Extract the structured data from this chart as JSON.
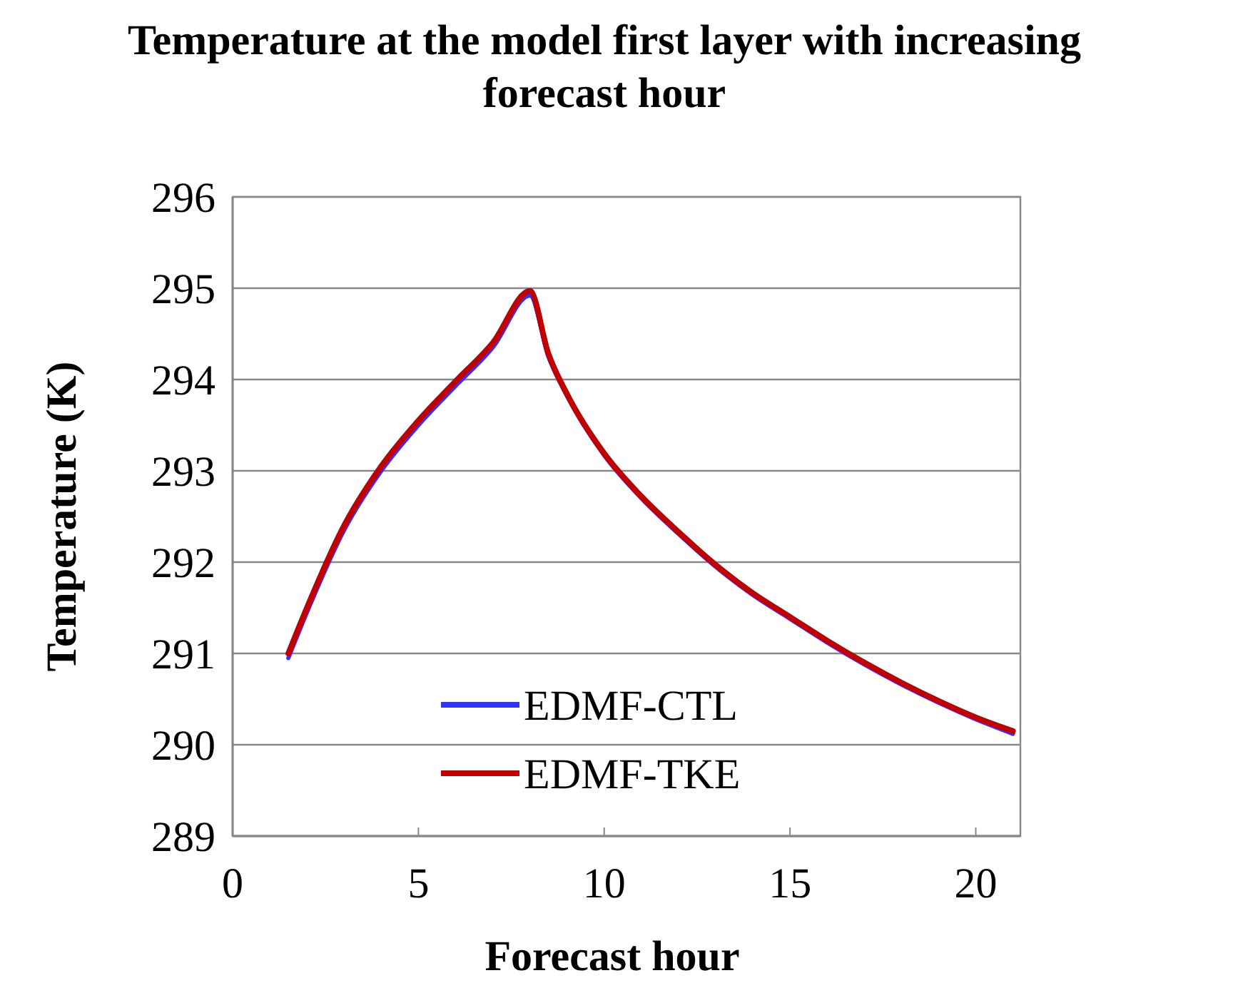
{
  "chart_data": {
    "type": "line",
    "title": "Temperature at the model first layer with increasing forecast hour",
    "xlabel": "Forecast hour",
    "ylabel": "Temperature (K)",
    "x": [
      1.5,
      2,
      3,
      4,
      5,
      6,
      7,
      8,
      8.5,
      9,
      10,
      11,
      12,
      13,
      14,
      15,
      16,
      17,
      18,
      19,
      20,
      21
    ],
    "series": [
      {
        "name": "EDMF-CTL",
        "color": "#3333ff",
        "values": [
          290.95,
          291.45,
          292.35,
          293.0,
          293.5,
          293.93,
          294.35,
          294.92,
          294.25,
          293.82,
          293.17,
          292.7,
          292.31,
          291.95,
          291.64,
          291.38,
          291.12,
          290.88,
          290.66,
          290.46,
          290.28,
          290.12
        ]
      },
      {
        "name": "EDMF-TKE",
        "color": "#c00000",
        "values": [
          291.0,
          291.5,
          292.4,
          293.05,
          293.55,
          293.98,
          294.4,
          294.97,
          294.28,
          293.84,
          293.19,
          292.72,
          292.33,
          291.97,
          291.66,
          291.4,
          291.14,
          290.9,
          290.68,
          290.48,
          290.3,
          290.15
        ]
      }
    ],
    "xlim": [
      0,
      21.2
    ],
    "xticks": [
      0,
      5,
      10,
      15,
      20
    ],
    "ylim": [
      289,
      296
    ],
    "yticks": [
      289,
      290,
      291,
      292,
      293,
      294,
      295,
      296
    ],
    "grid": "y",
    "legend": "bottom",
    "marker": "none",
    "line_style": "solid"
  }
}
